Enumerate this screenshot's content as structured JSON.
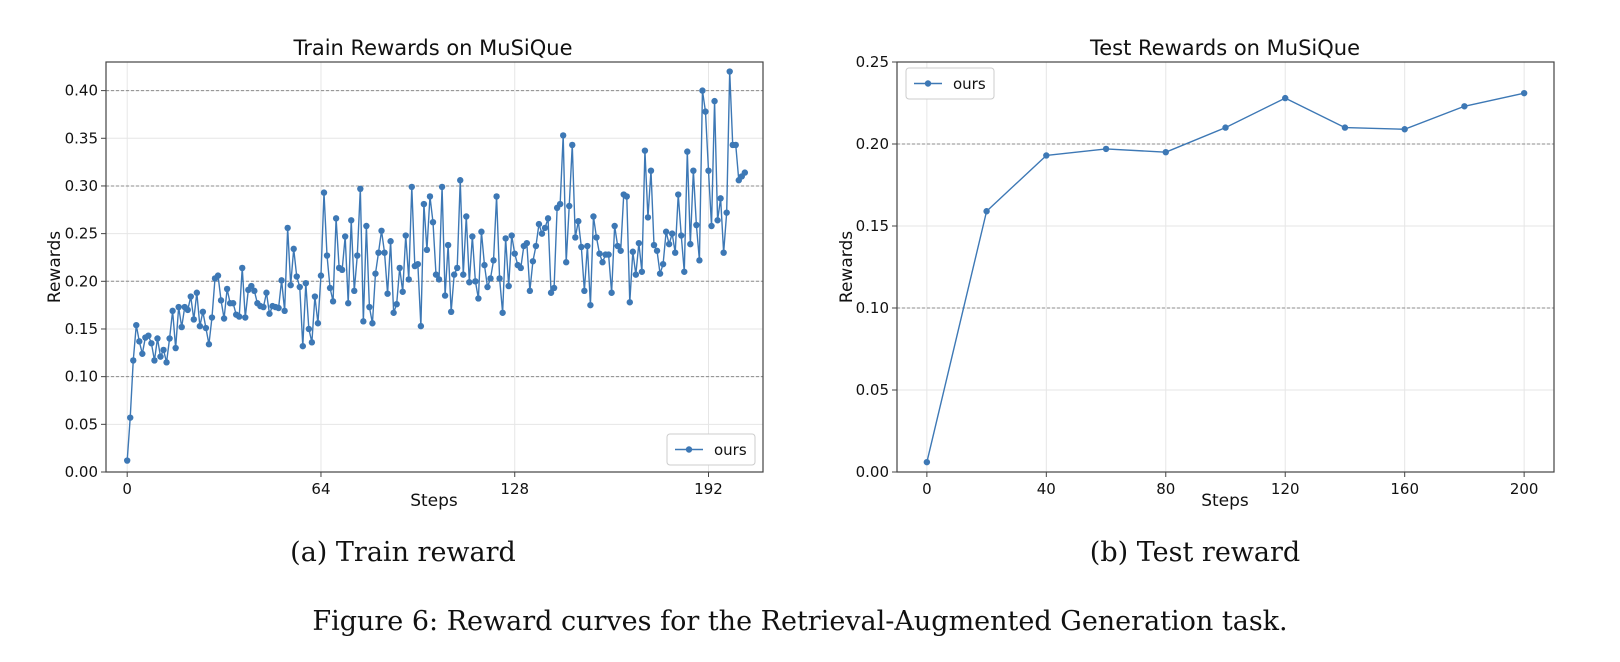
{
  "figure_caption": "Figure 6: Reward curves for the Retrieval-Augmented Generation task.",
  "colors": {
    "series": "#3d78b5",
    "frame": "#444444",
    "grid": "#e6e6e6",
    "dashed": "#8c8c8c"
  },
  "chart_data": [
    {
      "type": "line",
      "title": "Train Rewards on MuSiQue",
      "caption": "(a) Train reward",
      "xlabel": "Steps",
      "ylabel": "Rewards",
      "xlim": [
        -7,
        210
      ],
      "ylim": [
        0,
        0.43
      ],
      "xticks": [
        0,
        64,
        128,
        192
      ],
      "yticks": [
        0.0,
        0.05,
        0.1,
        0.15,
        0.2,
        0.25,
        0.3,
        0.35,
        0.4
      ],
      "dashed_y": [
        0.1,
        0.2,
        0.3,
        0.4
      ],
      "legend_position": "lower-right",
      "series": [
        {
          "name": "ours",
          "x_start": 0,
          "x_step": 1,
          "values": [
            0.012,
            0.057,
            0.117,
            0.154,
            0.137,
            0.124,
            0.141,
            0.143,
            0.135,
            0.117,
            0.14,
            0.121,
            0.128,
            0.115,
            0.14,
            0.169,
            0.13,
            0.173,
            0.152,
            0.173,
            0.17,
            0.184,
            0.16,
            0.188,
            0.153,
            0.168,
            0.151,
            0.134,
            0.162,
            0.203,
            0.206,
            0.18,
            0.161,
            0.192,
            0.177,
            0.177,
            0.165,
            0.163,
            0.214,
            0.162,
            0.191,
            0.195,
            0.19,
            0.177,
            0.174,
            0.173,
            0.188,
            0.166,
            0.174,
            0.173,
            0.172,
            0.201,
            0.169,
            0.256,
            0.196,
            0.234,
            0.205,
            0.194,
            0.132,
            0.198,
            0.15,
            0.136,
            0.184,
            0.156,
            0.206,
            0.293,
            0.227,
            0.193,
            0.179,
            0.266,
            0.214,
            0.212,
            0.247,
            0.177,
            0.264,
            0.19,
            0.227,
            0.297,
            0.158,
            0.258,
            0.173,
            0.156,
            0.208,
            0.23,
            0.253,
            0.23,
            0.187,
            0.242,
            0.167,
            0.176,
            0.214,
            0.189,
            0.248,
            0.202,
            0.299,
            0.216,
            0.218,
            0.153,
            0.281,
            0.233,
            0.289,
            0.262,
            0.207,
            0.202,
            0.299,
            0.185,
            0.238,
            0.168,
            0.207,
            0.214,
            0.306,
            0.207,
            0.268,
            0.199,
            0.247,
            0.2,
            0.182,
            0.252,
            0.217,
            0.194,
            0.203,
            0.222,
            0.289,
            0.203,
            0.167,
            0.245,
            0.195,
            0.248,
            0.229,
            0.217,
            0.214,
            0.237,
            0.24,
            0.19,
            0.221,
            0.237,
            0.26,
            0.25,
            0.256,
            0.266,
            0.188,
            0.193,
            0.277,
            0.281,
            0.353,
            0.22,
            0.279,
            0.343,
            0.246,
            0.263,
            0.236,
            0.19,
            0.237,
            0.175,
            0.268,
            0.246,
            0.229,
            0.22,
            0.228,
            0.228,
            0.188,
            0.258,
            0.237,
            0.232,
            0.291,
            0.289,
            0.178,
            0.231,
            0.207,
            0.24,
            0.21,
            0.337,
            0.267,
            0.316,
            0.238,
            0.232,
            0.208,
            0.218,
            0.252,
            0.239,
            0.25,
            0.23,
            0.291,
            0.248,
            0.21,
            0.336,
            0.239,
            0.316,
            0.259,
            0.222,
            0.4,
            0.378,
            0.316,
            0.258,
            0.389,
            0.264,
            0.287,
            0.23,
            0.272,
            0.42,
            0.343,
            0.343,
            0.306,
            0.31,
            0.314
          ]
        }
      ]
    },
    {
      "type": "line",
      "title": "Test Rewards on MuSiQue",
      "caption": "(b) Test reward",
      "xlabel": "Steps",
      "ylabel": "Rewards",
      "xlim": [
        -10,
        210
      ],
      "ylim": [
        0,
        0.25
      ],
      "xticks": [
        0,
        40,
        80,
        120,
        160,
        200
      ],
      "yticks": [
        0.0,
        0.05,
        0.1,
        0.15,
        0.2,
        0.25
      ],
      "dashed_y": [
        0.1,
        0.2
      ],
      "legend_position": "upper-left",
      "series": [
        {
          "name": "ours",
          "x": [
            0,
            20,
            40,
            60,
            80,
            100,
            120,
            140,
            160,
            180,
            200
          ],
          "values": [
            0.006,
            0.159,
            0.193,
            0.197,
            0.195,
            0.21,
            0.228,
            0.21,
            0.209,
            0.223,
            0.231
          ]
        }
      ]
    }
  ]
}
